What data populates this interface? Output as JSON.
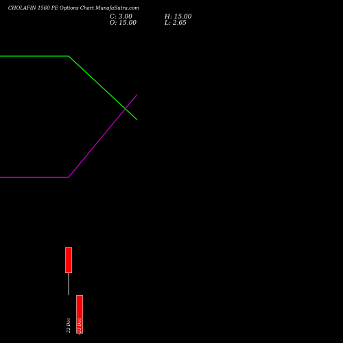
{
  "header": {
    "title": "CHOLAFIN 1560 PE Options Chart MunafaSutra.com",
    "close_text": "C: 3.00",
    "high_text": "H: 15.00",
    "open_text": "O: 15.00",
    "low_text": "L: 2.65"
  },
  "colors": {
    "background": "#000000",
    "text": "#ffffff",
    "bear_candle": "#ff0000",
    "wick": "#ffffff",
    "line_green": "#00ff00",
    "line_magenta": "#c000c0"
  },
  "chart_data": {
    "type": "candlestick",
    "x": [
      "22 Dec",
      "23 Dec"
    ],
    "candles": [
      {
        "date": "22 Dec",
        "open": 30.0,
        "high": 30.0,
        "low": 15.0,
        "close": 22.0
      },
      {
        "date": "23 Dec",
        "open": 15.0,
        "high": 15.0,
        "low": 2.65,
        "close": 3.0
      }
    ],
    "ylim": [
      0,
      107.6
    ],
    "overlay_lines": [
      {
        "color": "#00ff00",
        "points": [
          [
            0,
            90
          ],
          [
            1,
            90
          ],
          [
            2,
            70
          ]
        ]
      },
      {
        "color": "#c000c0",
        "points": [
          [
            0,
            52
          ],
          [
            1,
            52
          ],
          [
            2,
            78
          ]
        ]
      }
    ]
  }
}
